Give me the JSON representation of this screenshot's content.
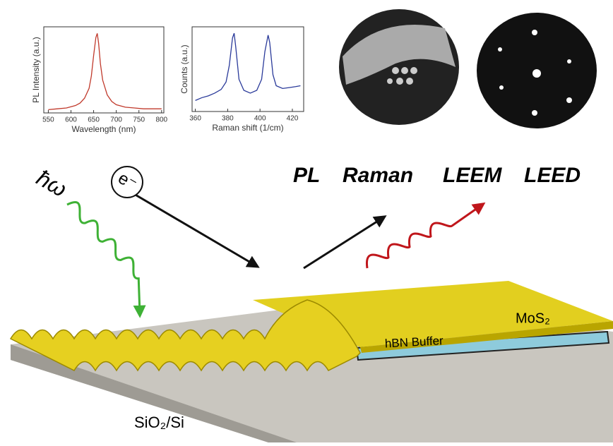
{
  "chart_data": [
    {
      "type": "line",
      "x_label": "Wavelength (nm)",
      "y_label": "PL Intensity (a.u.)",
      "x": [
        550,
        570,
        590,
        610,
        620,
        630,
        640,
        645,
        650,
        655,
        658,
        661,
        665,
        670,
        680,
        690,
        700,
        720,
        740,
        760,
        780,
        800
      ],
      "series": [
        {
          "color": "#c0392b",
          "values": [
            0.04,
            0.05,
            0.06,
            0.09,
            0.12,
            0.18,
            0.3,
            0.45,
            0.7,
            0.92,
            0.97,
            0.85,
            0.6,
            0.4,
            0.22,
            0.14,
            0.1,
            0.07,
            0.06,
            0.05,
            0.05,
            0.05
          ]
        }
      ],
      "xlim": [
        540,
        805
      ],
      "ylim": [
        0,
        1.05
      ],
      "xticks": [
        550,
        600,
        650,
        700,
        750,
        800
      ]
    },
    {
      "type": "line",
      "x_label": "Raman shift (1/cm)",
      "y_label": "Counts (a.u.)",
      "x": [
        360,
        364,
        368,
        372,
        376,
        379,
        381,
        383,
        384,
        385,
        387,
        390,
        394,
        398,
        401,
        403,
        405,
        406,
        408,
        410,
        414,
        418,
        422,
        425
      ],
      "series": [
        {
          "color": "#2a3a9a",
          "values": [
            0.22,
            0.25,
            0.27,
            0.3,
            0.34,
            0.42,
            0.6,
            0.9,
            0.95,
            0.8,
            0.45,
            0.33,
            0.3,
            0.33,
            0.45,
            0.75,
            0.93,
            0.85,
            0.5,
            0.38,
            0.35,
            0.36,
            0.37,
            0.38
          ]
        }
      ],
      "xlim": [
        358,
        427
      ],
      "ylim": [
        0.1,
        1.02
      ],
      "xticks": [
        360,
        380,
        400,
        420
      ]
    }
  ],
  "labels": {
    "photon": "ħω",
    "electron": "e⁻",
    "pl": "PL",
    "raman": "Raman",
    "leem": "LEEM",
    "leed": "LEED",
    "mos2": "MoS₂",
    "hbn": "hBN Buffer",
    "substrate": "SiO₂/Si"
  }
}
